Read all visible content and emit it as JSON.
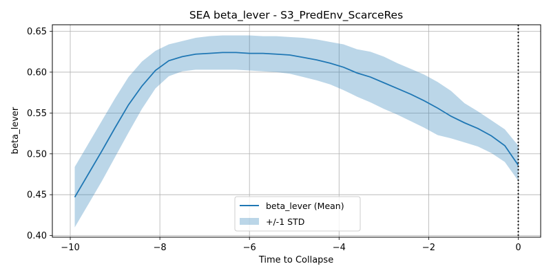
{
  "chart_data": {
    "type": "line",
    "title": "SEA beta_lever - S3_PredEnv_ScarceRes",
    "xlabel": "Time to Collapse",
    "ylabel": "beta_lever",
    "xlim": [
      -10.4,
      0.5
    ],
    "ylim": [
      0.398,
      0.658
    ],
    "xticks": [
      -10,
      -8,
      -6,
      -4,
      -2,
      0
    ],
    "yticks": [
      0.4,
      0.45,
      0.5,
      0.55,
      0.6,
      0.65
    ],
    "xtick_labels": [
      "−10",
      "−8",
      "−6",
      "−4",
      "−2",
      "0"
    ],
    "ytick_labels": [
      "0.40",
      "0.45",
      "0.50",
      "0.55",
      "0.60",
      "0.65"
    ],
    "grid": true,
    "legend_position": "lower-center",
    "vline": {
      "x": 0,
      "style": "dotted",
      "color": "#000000"
    },
    "series": [
      {
        "name": "beta_lever (Mean)",
        "color": "#1f77b4",
        "x": [
          -9.9,
          -9.6,
          -9.3,
          -9.0,
          -8.7,
          -8.4,
          -8.1,
          -7.8,
          -7.5,
          -7.2,
          -6.9,
          -6.6,
          -6.3,
          -6.0,
          -5.7,
          -5.4,
          -5.1,
          -4.8,
          -4.5,
          -4.2,
          -3.9,
          -3.6,
          -3.3,
          -3.0,
          -2.7,
          -2.4,
          -2.1,
          -1.8,
          -1.5,
          -1.2,
          -0.9,
          -0.6,
          -0.3,
          0.0
        ],
        "y": [
          0.447,
          0.475,
          0.503,
          0.532,
          0.56,
          0.583,
          0.602,
          0.614,
          0.619,
          0.622,
          0.623,
          0.624,
          0.624,
          0.623,
          0.623,
          0.622,
          0.621,
          0.618,
          0.615,
          0.611,
          0.606,
          0.599,
          0.594,
          0.587,
          0.58,
          0.573,
          0.565,
          0.556,
          0.546,
          0.538,
          0.531,
          0.522,
          0.51,
          0.486
        ]
      }
    ],
    "band": {
      "name": "+/-1 STD",
      "color": "#1f77b4",
      "opacity": 0.3,
      "lower": [
        0.41,
        0.438,
        0.466,
        0.496,
        0.526,
        0.555,
        0.58,
        0.595,
        0.601,
        0.603,
        0.603,
        0.603,
        0.603,
        0.602,
        0.601,
        0.6,
        0.598,
        0.594,
        0.59,
        0.585,
        0.578,
        0.57,
        0.563,
        0.555,
        0.548,
        0.54,
        0.532,
        0.523,
        0.519,
        0.514,
        0.509,
        0.501,
        0.49,
        0.467
      ],
      "upper": [
        0.484,
        0.512,
        0.54,
        0.568,
        0.594,
        0.613,
        0.626,
        0.634,
        0.638,
        0.642,
        0.644,
        0.645,
        0.645,
        0.645,
        0.644,
        0.644,
        0.643,
        0.642,
        0.64,
        0.637,
        0.634,
        0.628,
        0.625,
        0.619,
        0.611,
        0.604,
        0.597,
        0.588,
        0.577,
        0.562,
        0.552,
        0.541,
        0.53,
        0.51
      ]
    }
  }
}
